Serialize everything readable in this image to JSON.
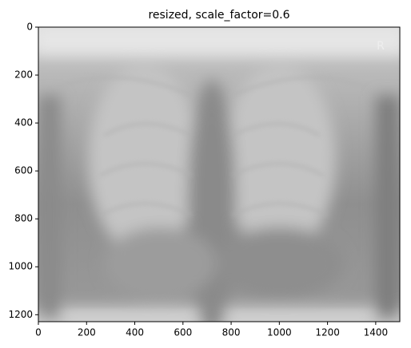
{
  "chart_data": {
    "type": "image",
    "title": "resized, scale_factor=0.6",
    "xlim": [
      0,
      1500
    ],
    "ylim": [
      1229,
      0
    ],
    "xticks": [
      0,
      200,
      400,
      600,
      800,
      1000,
      1200,
      1400
    ],
    "yticks": [
      0,
      200,
      400,
      600,
      800,
      1000,
      1200
    ]
  }
}
